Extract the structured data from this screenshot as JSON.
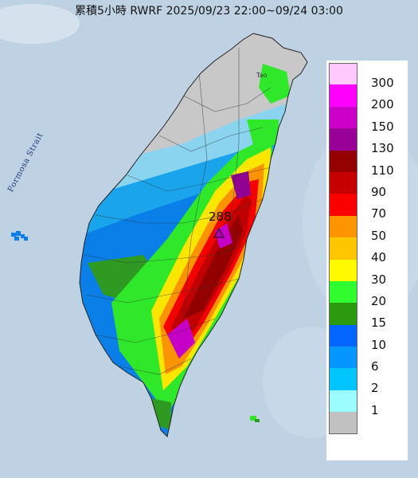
{
  "title": "累積5小時 RWRF 2025/09/23 22:00~09/24 03:00",
  "labels": {
    "strait": "Formosa Strait",
    "place": "Tao",
    "max_value": "288"
  },
  "legend": [
    {
      "label": "300",
      "color": "#fecafe"
    },
    {
      "label": "200",
      "color": "#fd00fc"
    },
    {
      "label": "150",
      "color": "#ca00c9"
    },
    {
      "label": "130",
      "color": "#990098"
    },
    {
      "label": "110",
      "color": "#950000"
    },
    {
      "label": "90",
      "color": "#c60000"
    },
    {
      "label": "70",
      "color": "#fb0000"
    },
    {
      "label": "50",
      "color": "#fc9500"
    },
    {
      "label": "40",
      "color": "#fec600"
    },
    {
      "label": "30",
      "color": "#fefb00"
    },
    {
      "label": "20",
      "color": "#2ffd2e"
    },
    {
      "label": "15",
      "color": "#2b9a0e"
    },
    {
      "label": "10",
      "color": "#0265fd"
    },
    {
      "label": "6",
      "color": "#0596fe"
    },
    {
      "label": "2",
      "color": "#00c6fd"
    },
    {
      "label": "1",
      "color": "#9afefe"
    },
    {
      "label": "",
      "color": "#c1c1c1"
    }
  ]
}
